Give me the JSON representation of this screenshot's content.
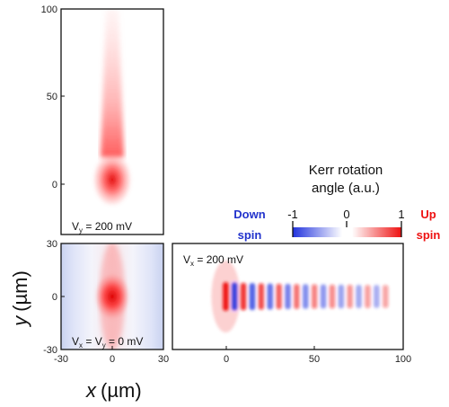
{
  "chart_data": [
    {
      "type": "heatmap",
      "panel": "top",
      "annotation_prefix": "V",
      "annotation_sub": "y",
      "annotation_value": " = 200 mV",
      "x_range": [
        -30,
        30
      ],
      "y_range": [
        -30,
        100
      ],
      "y_ticks": [
        "0",
        "50",
        "100"
      ],
      "description_values": {
        "peak_y": 0,
        "signal_sign": "up"
      }
    },
    {
      "type": "heatmap",
      "panel": "bottom-left",
      "annotation_parts": [
        "V",
        "x",
        " = V",
        "y",
        " = 0 mV"
      ],
      "x_range": [
        -30,
        30
      ],
      "y_range": [
        -30,
        30
      ],
      "x_ticks": [
        "-30",
        "0",
        "30"
      ],
      "y_ticks": [
        "-30",
        "0",
        "30"
      ],
      "xlabel_main": "x",
      "xlabel_unit": "(µm)",
      "ylabel_main": "y",
      "ylabel_unit": "(µm)"
    },
    {
      "type": "heatmap",
      "panel": "bottom-right",
      "annotation_prefix": "V",
      "annotation_sub": "x",
      "annotation_value": " = 200 mV",
      "x_range": [
        -30,
        100
      ],
      "y_range": [
        -30,
        30
      ],
      "x_ticks": [
        "0",
        "50",
        "100"
      ],
      "stripe_positions_um": [
        0,
        5,
        10,
        15,
        20,
        25,
        30,
        35,
        40,
        45,
        50,
        55,
        60,
        65,
        70,
        75,
        80,
        85,
        90
      ],
      "stripe_sign": [
        1,
        -1,
        1,
        -1,
        1,
        -1,
        1,
        -1,
        1,
        -1,
        1,
        -1,
        1,
        -1,
        1,
        -1,
        1,
        -1,
        1
      ]
    }
  ],
  "colorbar": {
    "title_line1": "Kerr rotation",
    "title_line2": "angle (a.u.)",
    "min_label": "-1",
    "mid_label": "0",
    "max_label": "1",
    "down_label_1": "Down",
    "down_label_2": "spin",
    "up_label_1": "Up",
    "up_label_2": "spin",
    "neg_color": "#2233dd",
    "pos_color": "#ee1111"
  }
}
